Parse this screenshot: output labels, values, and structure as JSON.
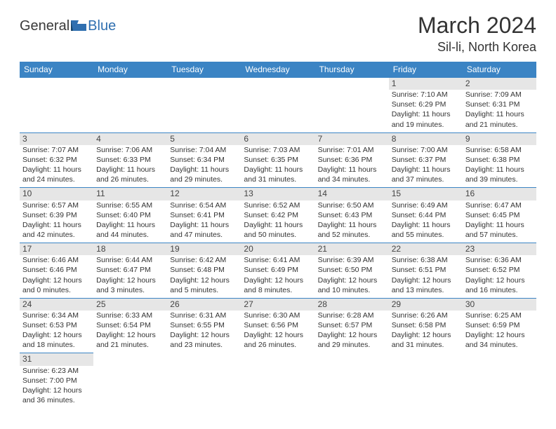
{
  "logo": {
    "text1": "General",
    "text2": "Blue"
  },
  "title": "March 2024",
  "location": "Sil-li, North Korea",
  "colors": {
    "header_bg": "#3b84c4",
    "header_text": "#ffffff",
    "daynum_bg": "#e6e6e6",
    "cell_border": "#3b84c4",
    "logo_blue": "#2f6fb0"
  },
  "weekday_headers": [
    "Sunday",
    "Monday",
    "Tuesday",
    "Wednesday",
    "Thursday",
    "Friday",
    "Saturday"
  ],
  "weeks": [
    [
      null,
      null,
      null,
      null,
      null,
      {
        "day": "1",
        "sunrise": "Sunrise: 7:10 AM",
        "sunset": "Sunset: 6:29 PM",
        "daylight1": "Daylight: 11 hours",
        "daylight2": "and 19 minutes."
      },
      {
        "day": "2",
        "sunrise": "Sunrise: 7:09 AM",
        "sunset": "Sunset: 6:31 PM",
        "daylight1": "Daylight: 11 hours",
        "daylight2": "and 21 minutes."
      }
    ],
    [
      {
        "day": "3",
        "sunrise": "Sunrise: 7:07 AM",
        "sunset": "Sunset: 6:32 PM",
        "daylight1": "Daylight: 11 hours",
        "daylight2": "and 24 minutes."
      },
      {
        "day": "4",
        "sunrise": "Sunrise: 7:06 AM",
        "sunset": "Sunset: 6:33 PM",
        "daylight1": "Daylight: 11 hours",
        "daylight2": "and 26 minutes."
      },
      {
        "day": "5",
        "sunrise": "Sunrise: 7:04 AM",
        "sunset": "Sunset: 6:34 PM",
        "daylight1": "Daylight: 11 hours",
        "daylight2": "and 29 minutes."
      },
      {
        "day": "6",
        "sunrise": "Sunrise: 7:03 AM",
        "sunset": "Sunset: 6:35 PM",
        "daylight1": "Daylight: 11 hours",
        "daylight2": "and 31 minutes."
      },
      {
        "day": "7",
        "sunrise": "Sunrise: 7:01 AM",
        "sunset": "Sunset: 6:36 PM",
        "daylight1": "Daylight: 11 hours",
        "daylight2": "and 34 minutes."
      },
      {
        "day": "8",
        "sunrise": "Sunrise: 7:00 AM",
        "sunset": "Sunset: 6:37 PM",
        "daylight1": "Daylight: 11 hours",
        "daylight2": "and 37 minutes."
      },
      {
        "day": "9",
        "sunrise": "Sunrise: 6:58 AM",
        "sunset": "Sunset: 6:38 PM",
        "daylight1": "Daylight: 11 hours",
        "daylight2": "and 39 minutes."
      }
    ],
    [
      {
        "day": "10",
        "sunrise": "Sunrise: 6:57 AM",
        "sunset": "Sunset: 6:39 PM",
        "daylight1": "Daylight: 11 hours",
        "daylight2": "and 42 minutes."
      },
      {
        "day": "11",
        "sunrise": "Sunrise: 6:55 AM",
        "sunset": "Sunset: 6:40 PM",
        "daylight1": "Daylight: 11 hours",
        "daylight2": "and 44 minutes."
      },
      {
        "day": "12",
        "sunrise": "Sunrise: 6:54 AM",
        "sunset": "Sunset: 6:41 PM",
        "daylight1": "Daylight: 11 hours",
        "daylight2": "and 47 minutes."
      },
      {
        "day": "13",
        "sunrise": "Sunrise: 6:52 AM",
        "sunset": "Sunset: 6:42 PM",
        "daylight1": "Daylight: 11 hours",
        "daylight2": "and 50 minutes."
      },
      {
        "day": "14",
        "sunrise": "Sunrise: 6:50 AM",
        "sunset": "Sunset: 6:43 PM",
        "daylight1": "Daylight: 11 hours",
        "daylight2": "and 52 minutes."
      },
      {
        "day": "15",
        "sunrise": "Sunrise: 6:49 AM",
        "sunset": "Sunset: 6:44 PM",
        "daylight1": "Daylight: 11 hours",
        "daylight2": "and 55 minutes."
      },
      {
        "day": "16",
        "sunrise": "Sunrise: 6:47 AM",
        "sunset": "Sunset: 6:45 PM",
        "daylight1": "Daylight: 11 hours",
        "daylight2": "and 57 minutes."
      }
    ],
    [
      {
        "day": "17",
        "sunrise": "Sunrise: 6:46 AM",
        "sunset": "Sunset: 6:46 PM",
        "daylight1": "Daylight: 12 hours",
        "daylight2": "and 0 minutes."
      },
      {
        "day": "18",
        "sunrise": "Sunrise: 6:44 AM",
        "sunset": "Sunset: 6:47 PM",
        "daylight1": "Daylight: 12 hours",
        "daylight2": "and 3 minutes."
      },
      {
        "day": "19",
        "sunrise": "Sunrise: 6:42 AM",
        "sunset": "Sunset: 6:48 PM",
        "daylight1": "Daylight: 12 hours",
        "daylight2": "and 5 minutes."
      },
      {
        "day": "20",
        "sunrise": "Sunrise: 6:41 AM",
        "sunset": "Sunset: 6:49 PM",
        "daylight1": "Daylight: 12 hours",
        "daylight2": "and 8 minutes."
      },
      {
        "day": "21",
        "sunrise": "Sunrise: 6:39 AM",
        "sunset": "Sunset: 6:50 PM",
        "daylight1": "Daylight: 12 hours",
        "daylight2": "and 10 minutes."
      },
      {
        "day": "22",
        "sunrise": "Sunrise: 6:38 AM",
        "sunset": "Sunset: 6:51 PM",
        "daylight1": "Daylight: 12 hours",
        "daylight2": "and 13 minutes."
      },
      {
        "day": "23",
        "sunrise": "Sunrise: 6:36 AM",
        "sunset": "Sunset: 6:52 PM",
        "daylight1": "Daylight: 12 hours",
        "daylight2": "and 16 minutes."
      }
    ],
    [
      {
        "day": "24",
        "sunrise": "Sunrise: 6:34 AM",
        "sunset": "Sunset: 6:53 PM",
        "daylight1": "Daylight: 12 hours",
        "daylight2": "and 18 minutes."
      },
      {
        "day": "25",
        "sunrise": "Sunrise: 6:33 AM",
        "sunset": "Sunset: 6:54 PM",
        "daylight1": "Daylight: 12 hours",
        "daylight2": "and 21 minutes."
      },
      {
        "day": "26",
        "sunrise": "Sunrise: 6:31 AM",
        "sunset": "Sunset: 6:55 PM",
        "daylight1": "Daylight: 12 hours",
        "daylight2": "and 23 minutes."
      },
      {
        "day": "27",
        "sunrise": "Sunrise: 6:30 AM",
        "sunset": "Sunset: 6:56 PM",
        "daylight1": "Daylight: 12 hours",
        "daylight2": "and 26 minutes."
      },
      {
        "day": "28",
        "sunrise": "Sunrise: 6:28 AM",
        "sunset": "Sunset: 6:57 PM",
        "daylight1": "Daylight: 12 hours",
        "daylight2": "and 29 minutes."
      },
      {
        "day": "29",
        "sunrise": "Sunrise: 6:26 AM",
        "sunset": "Sunset: 6:58 PM",
        "daylight1": "Daylight: 12 hours",
        "daylight2": "and 31 minutes."
      },
      {
        "day": "30",
        "sunrise": "Sunrise: 6:25 AM",
        "sunset": "Sunset: 6:59 PM",
        "daylight1": "Daylight: 12 hours",
        "daylight2": "and 34 minutes."
      }
    ],
    [
      {
        "day": "31",
        "sunrise": "Sunrise: 6:23 AM",
        "sunset": "Sunset: 7:00 PM",
        "daylight1": "Daylight: 12 hours",
        "daylight2": "and 36 minutes."
      },
      null,
      null,
      null,
      null,
      null,
      null
    ]
  ]
}
